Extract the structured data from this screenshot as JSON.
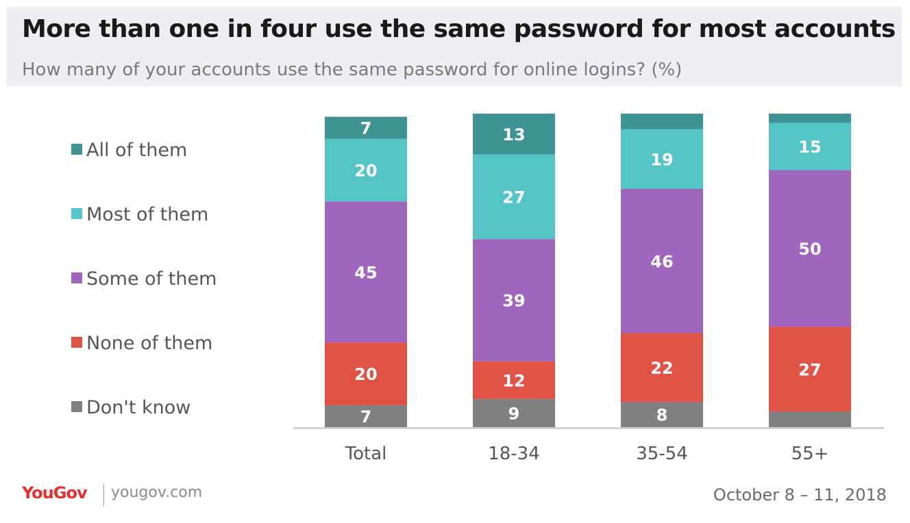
{
  "header": {
    "title": "More than one in four use the same password for most accounts",
    "subtitle": "How many of your accounts use the same password for online logins? (%)"
  },
  "footer": {
    "brand": "YouGov",
    "url": "yougov.com",
    "date": "October 8 – 11, 2018"
  },
  "chart_data": {
    "type": "bar",
    "stacked": true,
    "categories": [
      "Total",
      "18-34",
      "35-54",
      "55+"
    ],
    "legend_position": "left",
    "series": [
      {
        "name": "Don't know",
        "color": "#808080",
        "values": [
          7,
          9,
          8,
          5
        ],
        "labels": [
          "7",
          "9",
          "8",
          ""
        ]
      },
      {
        "name": "None of them",
        "color": "#e05243",
        "values": [
          20,
          12,
          22,
          27
        ],
        "labels": [
          "20",
          "12",
          "22",
          "27"
        ]
      },
      {
        "name": "Some of them",
        "color": "#a066bd",
        "values": [
          45,
          39,
          46,
          50
        ],
        "labels": [
          "45",
          "39",
          "46",
          "50"
        ]
      },
      {
        "name": "Most of them",
        "color": "#55c4c5",
        "values": [
          20,
          27,
          19,
          15
        ],
        "labels": [
          "20",
          "27",
          "19",
          "15"
        ]
      },
      {
        "name": "All of them",
        "color": "#3f9493",
        "values": [
          7,
          13,
          5,
          3
        ],
        "labels": [
          "7",
          "13",
          "",
          ""
        ]
      }
    ],
    "ylim": [
      0,
      100
    ]
  }
}
